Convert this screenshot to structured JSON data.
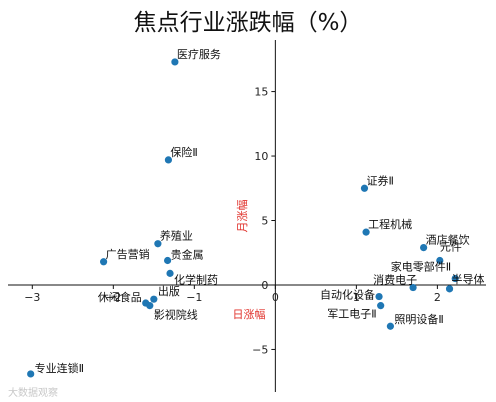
{
  "chart_data": {
    "type": "scatter",
    "title": "焦点行业涨跌幅（%）",
    "xlabel": "日涨幅",
    "ylabel": "月涨幅",
    "xlim": [
      -3.3,
      2.6
    ],
    "ylim": [
      -8.3,
      19.0
    ],
    "xticks": [
      -3,
      -2,
      -1,
      0,
      1,
      2
    ],
    "yticks": [
      -5,
      0,
      5,
      10,
      15
    ],
    "grid": false,
    "marker_color": "#1f77b4",
    "points": [
      {
        "name": "医疗服务",
        "x": -1.24,
        "y": 17.3
      },
      {
        "name": "保险Ⅱ",
        "x": -1.32,
        "y": 9.7
      },
      {
        "name": "养殖业",
        "x": -1.45,
        "y": 3.2
      },
      {
        "name": "广告营销",
        "x": -2.12,
        "y": 1.8
      },
      {
        "name": "贵金属",
        "x": -1.33,
        "y": 1.9
      },
      {
        "name": "化学制药",
        "x": -1.3,
        "y": 0.9
      },
      {
        "name": "休闲食品",
        "x": -1.6,
        "y": -1.4
      },
      {
        "name": "出版",
        "x": -1.5,
        "y": -1.1
      },
      {
        "name": "影视院线",
        "x": -1.55,
        "y": -1.6
      },
      {
        "name": "专业连锁Ⅱ",
        "x": -3.02,
        "y": -6.9
      },
      {
        "name": "证券Ⅱ",
        "x": 1.1,
        "y": 7.5
      },
      {
        "name": "工程机械",
        "x": 1.12,
        "y": 4.1
      },
      {
        "name": "酒店餐饮",
        "x": 1.83,
        "y": 2.9
      },
      {
        "name": "元件",
        "x": 2.03,
        "y": 1.9
      },
      {
        "name": "家电零部件Ⅱ",
        "x": 2.22,
        "y": 0.5
      },
      {
        "name": "消费电子",
        "x": 1.7,
        "y": -0.2
      },
      {
        "name": "半导体",
        "x": 2.15,
        "y": -0.3
      },
      {
        "name": "自动化设备",
        "x": 1.28,
        "y": -0.9
      },
      {
        "name": "军工电子Ⅱ",
        "x": 1.3,
        "y": -1.6
      },
      {
        "name": "照明设备Ⅱ",
        "x": 1.42,
        "y": -3.2
      }
    ]
  },
  "watermark": "大数据观察"
}
